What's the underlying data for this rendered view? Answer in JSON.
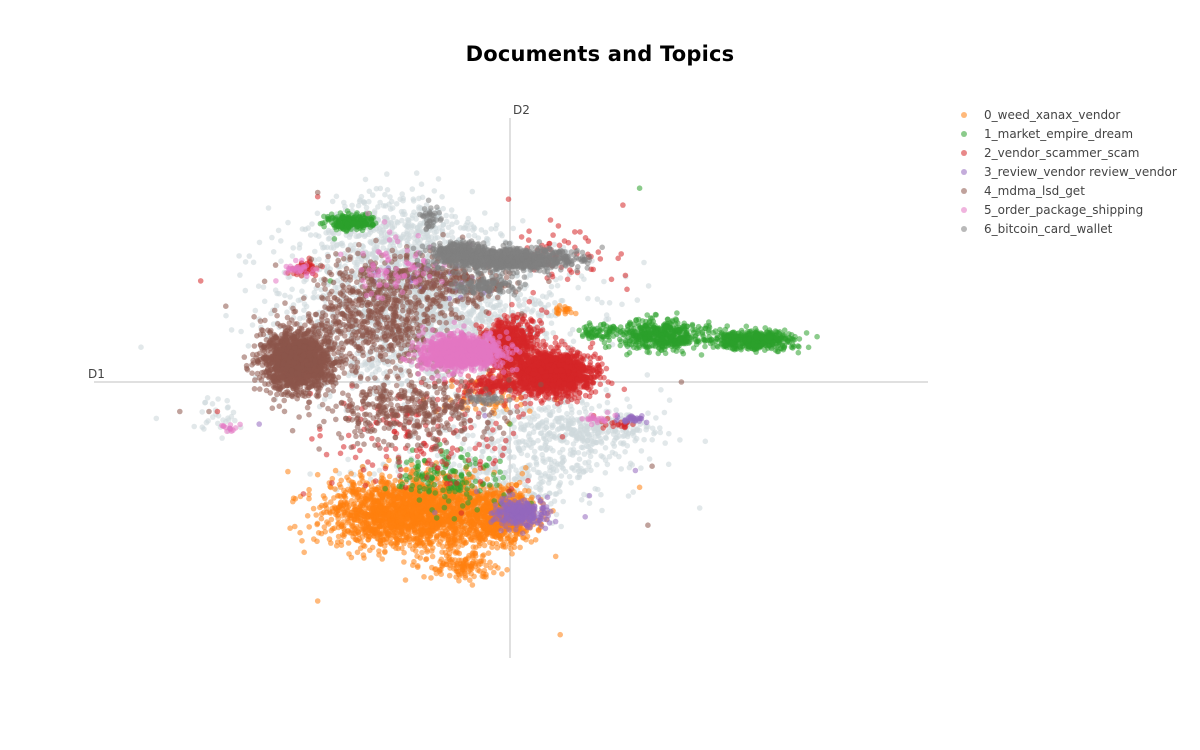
{
  "colors": {
    "background": "#ffffff",
    "axis_line": "#e0e0e0",
    "unassigned_points": "#cfd8dc",
    "title": "#000000",
    "text": "#444444"
  },
  "chart_data": {
    "type": "scatter",
    "title": "Documents and Topics",
    "xlabel": "D1",
    "ylabel": "D2",
    "xlim": [
      -5.0,
      5.0
    ],
    "ylim": [
      -3.3,
      3.3
    ],
    "grid": false,
    "legend_position": "top-right",
    "background_series": {
      "name": "",
      "color": "#cfd8dc",
      "clusters": [
        {
          "cx": -1.0,
          "cy": 0.8,
          "sx": 1.5,
          "sy": 0.8,
          "n": 1700
        },
        {
          "cx": -1.4,
          "cy": 1.7,
          "sx": 1.0,
          "sy": 0.5,
          "n": 500
        },
        {
          "cx": 0.6,
          "cy": -0.6,
          "sx": 1.0,
          "sy": 0.45,
          "n": 400
        },
        {
          "cx": -0.4,
          "cy": -1.2,
          "sx": 1.3,
          "sy": 0.4,
          "n": 400
        },
        {
          "cx": 1.1,
          "cy": -0.55,
          "sx": 0.5,
          "sy": 0.15,
          "n": 120
        },
        {
          "cx": -3.5,
          "cy": -0.4,
          "sx": 0.3,
          "sy": 0.2,
          "n": 30
        }
      ]
    },
    "series": [
      {
        "name": "0_weed_xanax_vendor",
        "color": "#ff7f0e",
        "clusters": [
          {
            "cx": -1.1,
            "cy": -1.55,
            "sx": 0.95,
            "sy": 0.36,
            "n": 2200
          },
          {
            "cx": -0.1,
            "cy": -1.6,
            "sx": 0.35,
            "sy": 0.3,
            "n": 500
          },
          {
            "cx": -0.6,
            "cy": -2.2,
            "sx": 0.35,
            "sy": 0.15,
            "n": 120
          },
          {
            "cx": -0.2,
            "cy": -0.15,
            "sx": 0.6,
            "sy": 0.25,
            "n": 60
          },
          {
            "cx": 0.65,
            "cy": 0.85,
            "sx": 0.15,
            "sy": 0.06,
            "n": 20
          }
        ],
        "outliers": [
          [
            0.6,
            -3.0
          ],
          [
            -2.3,
            -1.1
          ],
          [
            -2.3,
            -2.6
          ],
          [
            -1.25,
            -2.35
          ],
          [
            -2.2,
            -1.45
          ],
          [
            1.55,
            -1.25
          ],
          [
            -0.42,
            -1.05
          ]
        ]
      },
      {
        "name": "1_market_empire_dream",
        "color": "#2ca02c",
        "clusters": [
          {
            "cx": 1.8,
            "cy": 0.55,
            "sx": 0.5,
            "sy": 0.15,
            "n": 500
          },
          {
            "cx": 2.9,
            "cy": 0.5,
            "sx": 0.45,
            "sy": 0.1,
            "n": 450
          },
          {
            "cx": 1.05,
            "cy": 0.6,
            "sx": 0.2,
            "sy": 0.08,
            "n": 60
          },
          {
            "cx": -1.9,
            "cy": 1.9,
            "sx": 0.25,
            "sy": 0.08,
            "n": 220
          },
          {
            "cx": -0.75,
            "cy": -1.15,
            "sx": 0.55,
            "sy": 0.3,
            "n": 140
          }
        ],
        "outliers": [
          [
            1.55,
            2.3
          ],
          [
            -2.1,
            1.7
          ],
          [
            0.0,
            -0.5
          ],
          [
            -2.15,
            1.2
          ]
        ]
      },
      {
        "name": "2_vendor_scammer_scam",
        "color": "#d62728",
        "clusters": [
          {
            "cx": 0.5,
            "cy": 0.1,
            "sx": 0.42,
            "sy": 0.22,
            "n": 1600
          },
          {
            "cx": 0.0,
            "cy": 0.45,
            "sx": 0.3,
            "sy": 0.3,
            "n": 600
          },
          {
            "cx": -0.2,
            "cy": -0.05,
            "sx": 0.45,
            "sy": 0.1,
            "n": 150
          },
          {
            "cx": -2.45,
            "cy": 1.35,
            "sx": 0.15,
            "sy": 0.08,
            "n": 45
          },
          {
            "cx": -1.0,
            "cy": -0.7,
            "sx": 1.1,
            "sy": 0.6,
            "n": 150
          },
          {
            "cx": 0.55,
            "cy": 1.5,
            "sx": 0.5,
            "sy": 0.35,
            "n": 60
          },
          {
            "cx": 1.3,
            "cy": -0.5,
            "sx": 0.2,
            "sy": 0.05,
            "n": 20
          }
        ],
        "outliers": [
          [
            -2.3,
            2.2
          ],
          [
            1.35,
            2.1
          ],
          [
            -3.5,
            -0.35
          ],
          [
            -1.7,
            -0.95
          ],
          [
            1.4,
            1.1
          ],
          [
            1.0,
            -0.4
          ],
          [
            -3.7,
            1.2
          ],
          [
            0.2,
            -1.7
          ]
        ]
      },
      {
        "name": "3_review_vendor review_vendor",
        "color": "#9467bd",
        "clusters": [
          {
            "cx": 0.15,
            "cy": -1.55,
            "sx": 0.3,
            "sy": 0.14,
            "n": 300
          },
          {
            "cx": 1.45,
            "cy": -0.45,
            "sx": 0.15,
            "sy": 0.05,
            "n": 30
          },
          {
            "cx": -0.95,
            "cy": 1.2,
            "sx": 0.6,
            "sy": 0.2,
            "n": 30
          }
        ],
        "outliers": [
          [
            0.9,
            -1.6
          ],
          [
            -0.9,
            -1.55
          ],
          [
            -3.35,
            -0.55
          ],
          [
            -3.0,
            -0.5
          ],
          [
            1.5,
            -1.05
          ],
          [
            -0.4,
            -1.3
          ],
          [
            0.95,
            -1.35
          ],
          [
            -0.3,
            -0.4
          ]
        ]
      },
      {
        "name": "4_mdma_lsd_get",
        "color": "#8c564b",
        "clusters": [
          {
            "cx": -2.55,
            "cy": 0.25,
            "sx": 0.38,
            "sy": 0.32,
            "n": 1600
          },
          {
            "cx": -1.6,
            "cy": 0.8,
            "sx": 0.8,
            "sy": 0.6,
            "n": 700
          },
          {
            "cx": -1.2,
            "cy": -0.35,
            "sx": 0.9,
            "sy": 0.35,
            "n": 400
          },
          {
            "cx": -0.8,
            "cy": 1.2,
            "sx": 0.8,
            "sy": 0.25,
            "n": 250
          }
        ],
        "outliers": [
          [
            -2.3,
            2.25
          ],
          [
            -3.6,
            -0.35
          ],
          [
            -1.05,
            1.5
          ],
          [
            2.05,
            0.0
          ],
          [
            1.7,
            -1.0
          ],
          [
            1.65,
            -1.7
          ],
          [
            -3.4,
            0.9
          ],
          [
            -3.95,
            -0.35
          ],
          [
            -2.3,
            1.15
          ]
        ]
      },
      {
        "name": "5_order_package_shipping",
        "color": "#e377c2",
        "clusters": [
          {
            "cx": -0.6,
            "cy": 0.35,
            "sx": 0.42,
            "sy": 0.18,
            "n": 1200
          },
          {
            "cx": -1.4,
            "cy": 1.35,
            "sx": 0.6,
            "sy": 0.3,
            "n": 80
          },
          {
            "cx": -2.55,
            "cy": 1.35,
            "sx": 0.15,
            "sy": 0.06,
            "n": 30
          },
          {
            "cx": -3.35,
            "cy": -0.55,
            "sx": 0.1,
            "sy": 0.05,
            "n": 12
          },
          {
            "cx": 1.05,
            "cy": -0.45,
            "sx": 0.2,
            "sy": 0.05,
            "n": 20
          }
        ],
        "outliers": [
          [
            -1.5,
            1.9
          ],
          [
            -1.7,
            2.0
          ],
          [
            -0.95,
            1.6
          ],
          [
            -0.2,
            0.05
          ],
          [
            -2.8,
            1.2
          ]
        ]
      },
      {
        "name": "6_bitcoin_card_wallet",
        "color": "#7f7f7f",
        "clusters": [
          {
            "cx": 0.0,
            "cy": 1.45,
            "sx": 0.7,
            "sy": 0.12,
            "n": 900
          },
          {
            "cx": -0.6,
            "cy": 1.55,
            "sx": 0.3,
            "sy": 0.1,
            "n": 250
          },
          {
            "cx": -0.3,
            "cy": 1.15,
            "sx": 0.35,
            "sy": 0.1,
            "n": 120
          },
          {
            "cx": -0.95,
            "cy": 1.95,
            "sx": 0.12,
            "sy": 0.12,
            "n": 35
          },
          {
            "cx": -0.3,
            "cy": -0.2,
            "sx": 0.25,
            "sy": 0.05,
            "n": 30
          }
        ],
        "outliers": [
          [
            0.0,
            -0.1
          ],
          [
            -0.45,
            -0.2
          ],
          [
            -0.05,
            1.65
          ]
        ]
      }
    ]
  }
}
